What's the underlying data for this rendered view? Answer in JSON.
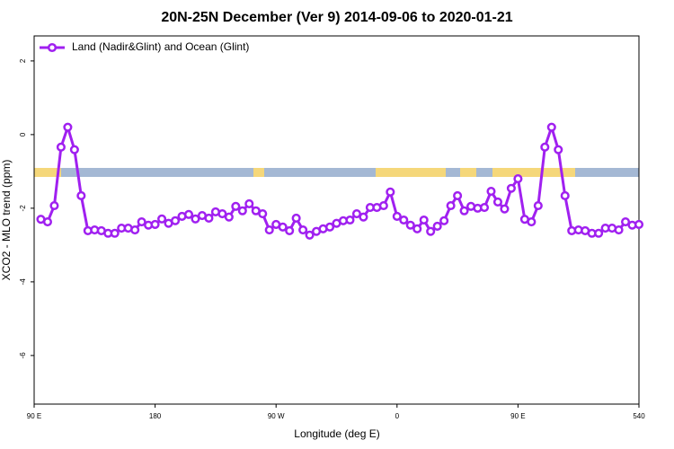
{
  "chart_data": {
    "type": "line",
    "title": "20N-25N December (Ver 9)   2014-09-06 to 2020-01-21",
    "x_label": "Longitude (deg E)",
    "y_label": "XCO2 - MLO trend (ppm)",
    "x": [
      95,
      100,
      105,
      110,
      115,
      120,
      125,
      130,
      135,
      140,
      145,
      150,
      155,
      160,
      165,
      170,
      175,
      180,
      185,
      190,
      195,
      200,
      205,
      210,
      215,
      220,
      225,
      230,
      235,
      240,
      245,
      250,
      255,
      260,
      265,
      270,
      275,
      280,
      285,
      290,
      295,
      300,
      305,
      310,
      315,
      320,
      325,
      330,
      335,
      340,
      345,
      350,
      355,
      360,
      365,
      370,
      375,
      380,
      385,
      390,
      395,
      400,
      405,
      410,
      415,
      420,
      425,
      430,
      435,
      440,
      445,
      450,
      455,
      460,
      465,
      470,
      475,
      480,
      485,
      490,
      495,
      500,
      505,
      510,
      515,
      520,
      525,
      530,
      535,
      540
    ],
    "series": [
      {
        "name": "Land (Nadir&Glint) and Ocean (Glint)",
        "color": "#a020f0",
        "values": [
          -2.3,
          -2.37,
          -1.93,
          -0.34,
          0.2,
          -0.41,
          -1.66,
          -2.61,
          -2.59,
          -2.61,
          -2.68,
          -2.68,
          -2.54,
          -2.54,
          -2.59,
          -2.37,
          -2.46,
          -2.44,
          -2.29,
          -2.41,
          -2.34,
          -2.22,
          -2.17,
          -2.29,
          -2.2,
          -2.27,
          -2.1,
          -2.15,
          -2.24,
          -1.95,
          -2.07,
          -1.88,
          -2.07,
          -2.15,
          -2.59,
          -2.44,
          -2.51,
          -2.61,
          -2.27,
          -2.59,
          -2.73,
          -2.63,
          -2.56,
          -2.51,
          -2.41,
          -2.34,
          -2.32,
          -2.15,
          -2.24,
          -1.98,
          -1.98,
          -1.93,
          -1.56,
          -2.22,
          -2.32,
          -2.46,
          -2.56,
          -2.32,
          -2.63,
          -2.49,
          -2.34,
          -1.93,
          -1.66,
          -2.07,
          -1.95,
          -2.0,
          -1.98,
          -1.54,
          -1.83,
          -2.02,
          -1.46,
          -1.2,
          -2.3,
          -2.37,
          -1.93,
          -0.34,
          0.2,
          -0.41,
          -1.66,
          -2.61,
          -2.59,
          -2.61,
          -2.68,
          -2.68,
          -2.54,
          -2.54,
          -2.59,
          -2.37,
          -2.46,
          -2.44
        ]
      }
    ],
    "xlim": [
      90,
      540
    ],
    "xticks": [
      {
        "value": 90,
        "label": "90 E"
      },
      180,
      {
        "value": 270,
        "label": "90 W"
      },
      {
        "value": 360,
        "label": "0"
      },
      {
        "value": 450,
        "label": "90 E"
      },
      540
    ],
    "ylim": [
      -7.32,
      2.68
    ],
    "yticks": [
      2,
      0,
      -2,
      -4,
      -6
    ],
    "legend": "top-left"
  }
}
